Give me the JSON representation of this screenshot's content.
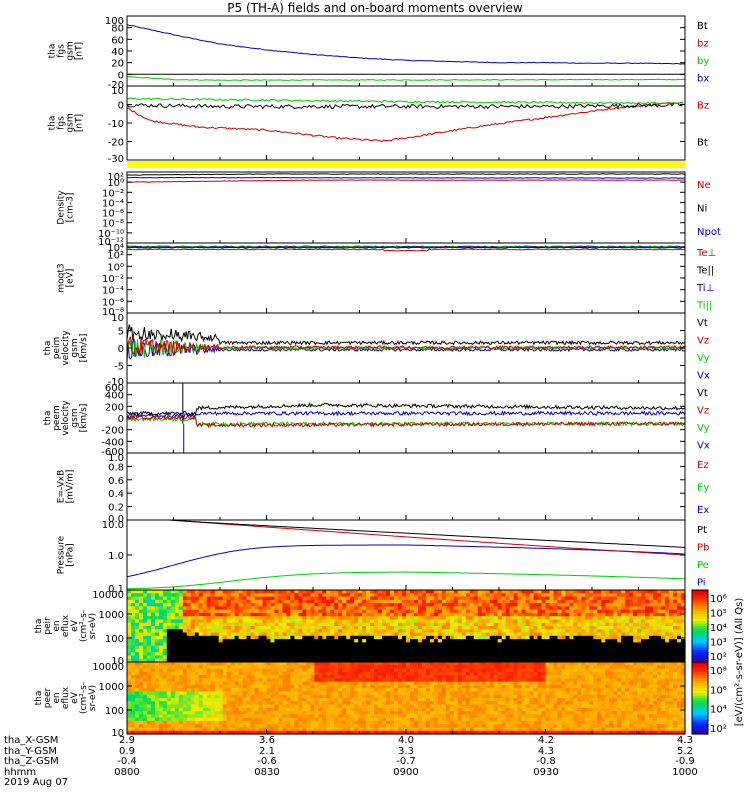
{
  "title": "P5 (TH-A) fields and on-board moments overview",
  "colors": {
    "black": "#000000",
    "red": "#cc0000",
    "green": "#00cc00",
    "blue": "#0000cc",
    "yellow": "#ffff00"
  },
  "chart_data": [
    {
      "type": "line",
      "id": "fgs",
      "ylabel": [
        "tha",
        "fgs",
        "gsm",
        "[nT]"
      ],
      "yticks": [
        "100",
        "80",
        "60",
        "40",
        "20",
        "0",
        "-20"
      ],
      "legend": [
        {
          "label": "Bt",
          "color": "#000000"
        },
        {
          "label": "bz",
          "color": "#cc0000"
        },
        {
          "label": "by",
          "color": "#00cc00"
        },
        {
          "label": "bx",
          "color": "#0000cc"
        }
      ],
      "ylim": [
        -20,
        100
      ],
      "series": [
        {
          "name": "bx",
          "color": "#0000cc",
          "x": [
            800,
            810,
            820,
            830,
            840,
            850,
            900,
            910,
            920,
            930,
            940,
            950,
            1000
          ],
          "values": [
            85,
            68,
            52,
            42,
            34,
            28,
            24,
            22,
            20,
            20,
            19,
            19,
            18
          ]
        },
        {
          "name": "by",
          "color": "#00cc00",
          "x": [
            800,
            810,
            820,
            1000
          ],
          "values": [
            -4,
            -9,
            -10,
            -9
          ]
        }
      ]
    },
    {
      "type": "line",
      "id": "fgs2",
      "ylabel": [
        "tha",
        "fgs",
        "gsm",
        "[nT]"
      ],
      "yticks": [
        "10",
        "0",
        "-10",
        "-20",
        "-30"
      ],
      "legend": [
        {
          "label": "Bz",
          "color": "#cc0000"
        },
        {
          "label": "Bt",
          "color": "#000000"
        }
      ],
      "ylim": [
        -35,
        12
      ],
      "series": [
        {
          "name": "Bz",
          "color": "#cc0000",
          "x": [
            800,
            805,
            815,
            830,
            845,
            855,
            900,
            915,
            930,
            945,
            1000
          ],
          "values": [
            -2,
            -10,
            -14,
            -16,
            -21,
            -23,
            -21,
            -14,
            -8,
            -2,
            2
          ]
        },
        {
          "name": "Bt",
          "color": "#000000",
          "x": [
            800,
            820,
            840,
            900,
            930,
            1000
          ],
          "values": [
            0,
            -1,
            -1,
            -1,
            -1,
            0
          ]
        },
        {
          "name": "green",
          "color": "#00cc00",
          "x": [
            800,
            900,
            1000
          ],
          "values": [
            4,
            2,
            1
          ]
        }
      ]
    },
    {
      "type": "heatmap",
      "id": "mode_bar",
      "color": "#ffff00"
    },
    {
      "type": "line",
      "id": "density",
      "ylabel": [
        "Density",
        "[cm-3]"
      ],
      "yticks": [
        "10²",
        "10⁰",
        "10⁻²",
        "10⁻⁴",
        "10⁻⁶",
        "10⁻⁸",
        "10⁻¹⁰",
        "10⁻¹²"
      ],
      "legend": [
        {
          "label": "Ne",
          "color": "#cc0000"
        },
        {
          "label": "Ni",
          "color": "#000000"
        },
        {
          "label": "Npot",
          "color": "#0000cc"
        }
      ],
      "ylim": [
        -12,
        2
      ]
    },
    {
      "type": "line",
      "id": "temp",
      "ylabel": [
        "moqt3",
        "[eV]"
      ],
      "yticks": [
        "10⁴",
        "10²",
        "10⁰",
        "10⁻²",
        "10⁻⁴",
        "10⁻⁶",
        "10⁻⁸"
      ],
      "legend": [
        {
          "label": "Te⊥",
          "color": "#cc0000"
        },
        {
          "label": "Te||",
          "color": "#000000"
        },
        {
          "label": "Ti⊥",
          "color": "#0000cc"
        },
        {
          "label": "Ti||",
          "color": "#00cc00"
        }
      ],
      "ylim": [
        -8,
        4
      ]
    },
    {
      "type": "line",
      "id": "peim_vel",
      "ylabel": [
        "tha",
        "peim",
        "velocity",
        "gsm",
        "[km/s]"
      ],
      "yticks": [
        "10",
        "5",
        "0",
        "-5",
        "-10"
      ],
      "legend": [
        {
          "label": "Vt",
          "color": "#000000"
        },
        {
          "label": "Vz",
          "color": "#cc0000"
        },
        {
          "label": "Vy",
          "color": "#00cc00"
        },
        {
          "label": "Vx",
          "color": "#0000cc"
        }
      ],
      "ylim": [
        -10,
        10
      ]
    },
    {
      "type": "line",
      "id": "peem_vel",
      "ylabel": [
        "tha",
        "peem",
        "velocity",
        "gsm",
        "[km/s]"
      ],
      "yticks": [
        "600",
        "400",
        "200",
        "0",
        "-200",
        "-400",
        "-600"
      ],
      "legend": [
        {
          "label": "Vt",
          "color": "#000000"
        },
        {
          "label": "Vz",
          "color": "#cc0000"
        },
        {
          "label": "Vy",
          "color": "#00cc00"
        },
        {
          "label": "Vx",
          "color": "#0000cc"
        }
      ],
      "ylim": [
        -600,
        600
      ]
    },
    {
      "type": "line",
      "id": "efield",
      "ylabel": [
        "E=-VxB",
        "[mV/m]"
      ],
      "yticks": [
        "1.0",
        "0.8",
        "0.6",
        "0.4",
        "0.2",
        "0.0"
      ],
      "legend": [
        {
          "label": "Ez",
          "color": "#cc0000"
        },
        {
          "label": "Ey",
          "color": "#00cc00"
        },
        {
          "label": "Ex",
          "color": "#0000cc"
        }
      ],
      "ylim": [
        0,
        1
      ]
    },
    {
      "type": "line",
      "id": "pressure",
      "ylabel": [
        "Pressure",
        "[nPa]"
      ],
      "yticks": [
        "10.0",
        "1.0",
        "0.1"
      ],
      "legend": [
        {
          "label": "Pt",
          "color": "#000000"
        },
        {
          "label": "Pb",
          "color": "#cc0000"
        },
        {
          "label": "Pe",
          "color": "#00cc00"
        },
        {
          "label": "Pi",
          "color": "#0000cc"
        }
      ],
      "ylim": [
        0.03,
        30
      ]
    },
    {
      "type": "heatmap",
      "id": "peir",
      "ylabel": [
        "tha",
        "peir",
        "en",
        "eflux",
        "eV",
        "(cm²-s-",
        "sr-eV)"
      ],
      "yticks": [
        "10000",
        "1000",
        "100",
        "10"
      ]
    },
    {
      "type": "heatmap",
      "id": "peer",
      "ylabel": [
        "tha",
        "peer",
        "en",
        "eflux",
        "eV",
        "(cm²-s-",
        "sr-eV)"
      ],
      "yticks": [
        "10000",
        "1000",
        "100",
        "10"
      ]
    }
  ],
  "colorbars": [
    {
      "ticks": [
        "10⁶",
        "10⁵",
        "10⁴",
        "10³",
        "10²"
      ]
    },
    {
      "ticks": [
        "10⁸",
        "10⁶",
        "10⁴",
        "10²"
      ]
    }
  ],
  "colorbar_label": "[eV/(cm²-s-sr-eV)] (All Qs)",
  "ephemeris": {
    "labels": [
      "tha_X-GSM",
      "tha_Y-GSM",
      "tha_Z-GSM",
      "hhmm",
      "2019 Aug 07"
    ],
    "columns": [
      {
        "X": "2.9",
        "Y": "0.9",
        "Z": "-0.4",
        "t": "0800"
      },
      {
        "X": "3.6",
        "Y": "2.1",
        "Z": "-0.6",
        "t": "0830"
      },
      {
        "X": "4.0",
        "Y": "3.3",
        "Z": "-0.7",
        "t": "0900"
      },
      {
        "X": "4.2",
        "Y": "4.3",
        "Z": "-0.8",
        "t": "0930"
      },
      {
        "X": "4.3",
        "Y": "5.2",
        "Z": "-0.9",
        "t": "1000"
      }
    ]
  }
}
